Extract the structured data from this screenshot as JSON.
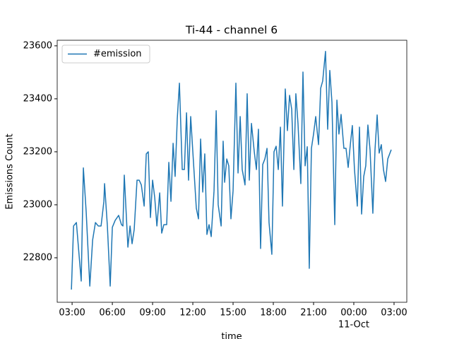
{
  "chart_data": {
    "type": "line",
    "title": "Ti-44 - channel 6",
    "xlabel": "time",
    "ylabel": "Emissions Count",
    "x": [
      2.95,
      3.11,
      3.32,
      3.68,
      3.84,
      4.05,
      4.32,
      4.53,
      4.74,
      4.95,
      5.16,
      5.37,
      5.42,
      5.63,
      5.84,
      6.0,
      6.21,
      6.47,
      6.68,
      6.79,
      6.89,
      7.16,
      7.32,
      7.47,
      7.63,
      7.84,
      8.0,
      8.16,
      8.37,
      8.53,
      8.68,
      8.84,
      9.0,
      9.16,
      9.32,
      9.53,
      9.68,
      9.84,
      10.05,
      10.21,
      10.37,
      10.53,
      10.68,
      10.84,
      11.0,
      11.21,
      11.37,
      11.53,
      11.68,
      11.84,
      12.0,
      12.26,
      12.42,
      12.58,
      12.74,
      12.89,
      13.05,
      13.21,
      13.37,
      13.58,
      13.74,
      13.89,
      14.11,
      14.26,
      14.37,
      14.53,
      14.68,
      14.84,
      15.0,
      15.21,
      15.37,
      15.53,
      15.68,
      15.89,
      16.05,
      16.21,
      16.37,
      16.58,
      16.74,
      16.89,
      17.05,
      17.21,
      17.37,
      17.53,
      17.68,
      17.89,
      18.05,
      18.21,
      18.37,
      18.53,
      18.68,
      18.89,
      19.05,
      19.21,
      19.37,
      19.53,
      19.68,
      19.84,
      20.05,
      20.21,
      20.37,
      20.53,
      20.68,
      20.84,
      21.0,
      21.16,
      21.37,
      21.53,
      21.68,
      21.89,
      22.05,
      22.21,
      22.37,
      22.58,
      22.74,
      22.89,
      23.05,
      23.26,
      23.42,
      23.58,
      23.74,
      23.89,
      24.05,
      24.26,
      24.42,
      24.58,
      24.74,
      24.89,
      25.05,
      25.21,
      25.42,
      25.58,
      25.74,
      25.89,
      26.05,
      26.21,
      26.37,
      26.53,
      26.79
    ],
    "series": [
      {
        "name": "#emission",
        "color": "#1f77b4",
        "values": [
          22680,
          22920,
          22933,
          22712,
          23139,
          22973,
          22693,
          22867,
          22933,
          22920,
          22920,
          23013,
          23080,
          22920,
          22693,
          22915,
          22941,
          22960,
          22925,
          22920,
          23112,
          22840,
          22920,
          22853,
          22907,
          23093,
          23093,
          23075,
          22995,
          23192,
          23200,
          22952,
          23093,
          23027,
          22920,
          23045,
          22893,
          22925,
          22925,
          23160,
          23013,
          23232,
          23107,
          23325,
          23459,
          23133,
          23133,
          23347,
          23093,
          23333,
          23200,
          22987,
          22947,
          23248,
          23048,
          23192,
          22888,
          22925,
          22880,
          23053,
          23355,
          23000,
          22920,
          23240,
          23085,
          23173,
          23147,
          22947,
          23053,
          23459,
          23120,
          23333,
          23133,
          23075,
          23419,
          23093,
          23307,
          23200,
          23133,
          23285,
          22835,
          23152,
          23173,
          23213,
          22933,
          22813,
          23200,
          23221,
          23133,
          23293,
          22995,
          23437,
          23280,
          23413,
          23360,
          23133,
          23419,
          23307,
          23080,
          23501,
          23147,
          23219,
          22760,
          23213,
          23267,
          23333,
          23227,
          23440,
          23467,
          23579,
          23285,
          23507,
          23387,
          22925,
          23395,
          23267,
          23341,
          23213,
          23213,
          23141,
          23227,
          23299,
          23133,
          22995,
          23293,
          22965,
          23107,
          23147,
          23301,
          23208,
          22968,
          23208,
          23339,
          23195,
          23227,
          23133,
          23088,
          23173,
          23208
        ]
      }
    ],
    "xlim": [
      1.89,
      27.95
    ],
    "ylim": [
      22632,
      23621
    ],
    "xticks": [
      {
        "value": 3,
        "label": "03:00"
      },
      {
        "value": 6,
        "label": "06:00"
      },
      {
        "value": 9,
        "label": "09:00"
      },
      {
        "value": 12,
        "label": "12:00"
      },
      {
        "value": 15,
        "label": "15:00"
      },
      {
        "value": 18,
        "label": "18:00"
      },
      {
        "value": 21,
        "label": "21:00"
      },
      {
        "value": 24,
        "label": "00:00",
        "date_label": "11-Oct"
      },
      {
        "value": 27,
        "label": "03:00"
      }
    ],
    "yticks": [
      22800,
      23000,
      23200,
      23400,
      23600
    ],
    "legend": "upper left"
  }
}
